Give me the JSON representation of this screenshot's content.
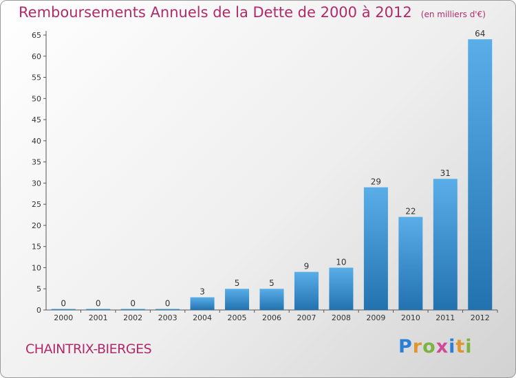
{
  "header": {
    "title": "Remboursements Annuels de la Dette de 2000 à 2012",
    "unit": "(en milliers d'€)"
  },
  "footer": {
    "commune": "CHAINTRIX-BIERGES",
    "brand_letters": [
      "P",
      "r",
      "o",
      "x",
      "i",
      "t",
      "i"
    ],
    "brand_colors": [
      "#2a7fd4",
      "#e0962e",
      "#7cb342",
      "#d04a9a",
      "#2a7fd4",
      "#e0962e",
      "#7cb342"
    ]
  },
  "chart_data": {
    "type": "bar",
    "categories": [
      "2000",
      "2001",
      "2002",
      "2003",
      "2004",
      "2005",
      "2006",
      "2007",
      "2008",
      "2009",
      "2010",
      "2011",
      "2012"
    ],
    "values": [
      0,
      0,
      0,
      0,
      3,
      5,
      5,
      9,
      10,
      29,
      22,
      31,
      64
    ],
    "ylim": [
      0,
      65
    ],
    "yticks": [
      0,
      5,
      10,
      15,
      20,
      25,
      30,
      35,
      40,
      45,
      50,
      55,
      60,
      65
    ],
    "grid": false,
    "bar_color_top": "#5aaee8",
    "bar_color_bottom": "#2272b0"
  }
}
